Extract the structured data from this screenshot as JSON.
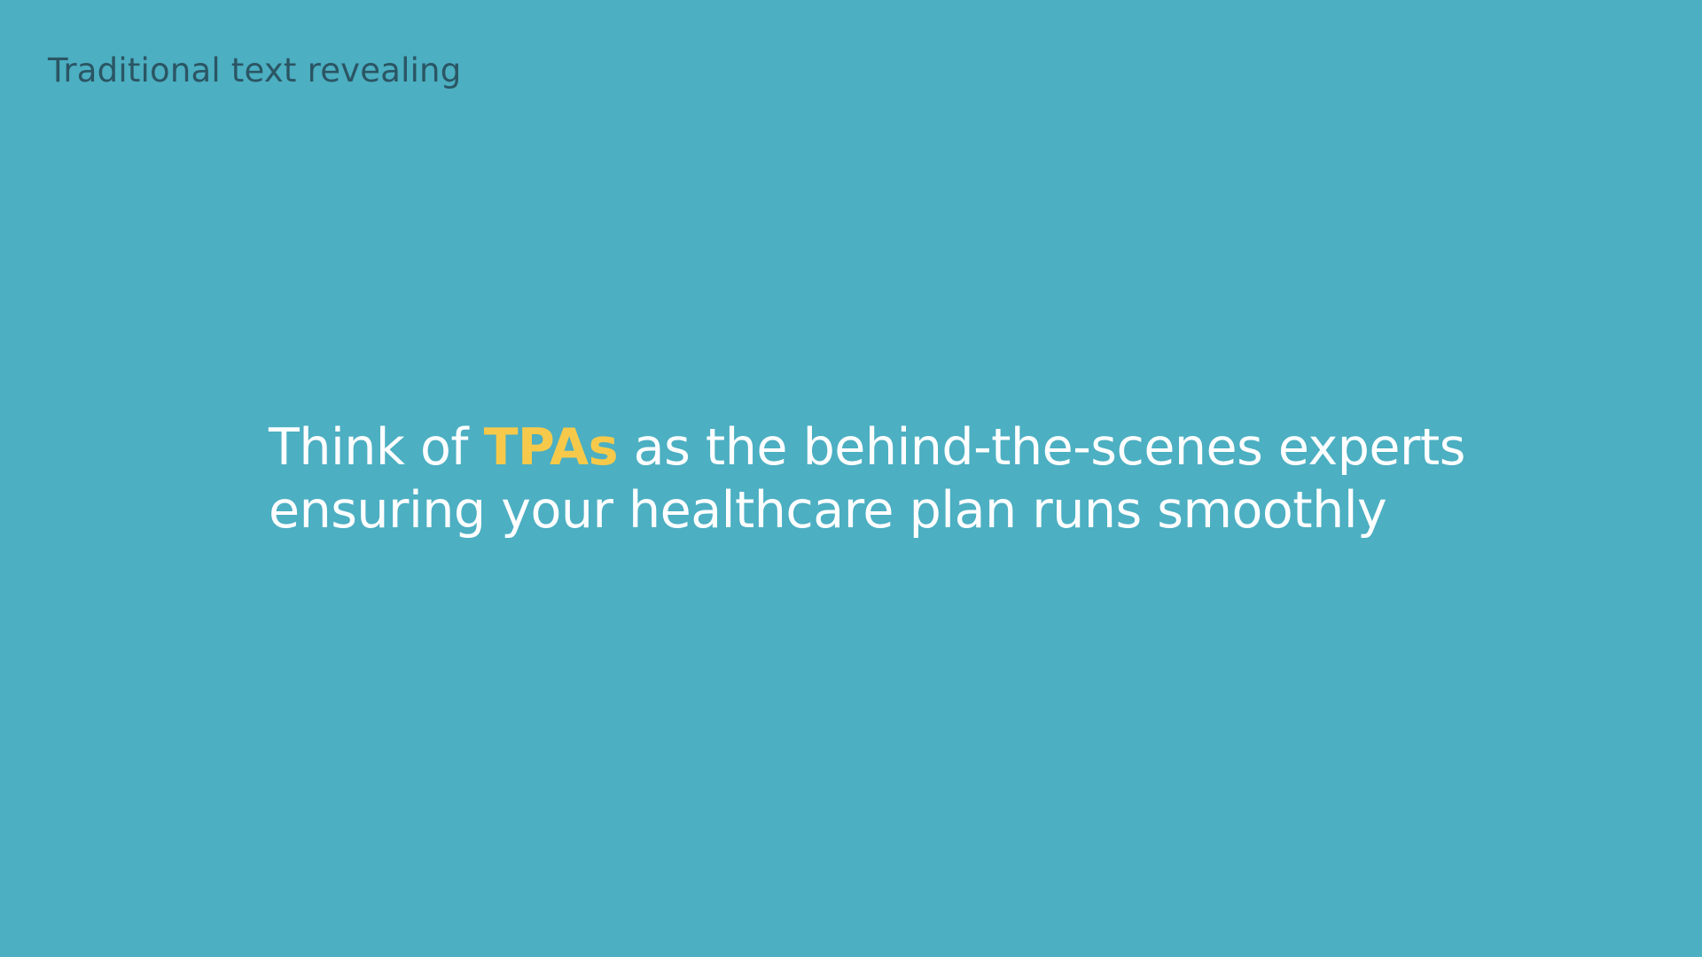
{
  "slide": {
    "caption": "Traditional text revealing",
    "headline": {
      "line1_prefix": "Think of ",
      "line1_highlight": "TPAs",
      "line1_suffix": " as the behind-the-scenes experts",
      "line2": "ensuring your healthcare plan runs smoothly"
    }
  },
  "colors": {
    "background": "#4cafc2",
    "caption_text": "#2b5563",
    "headline_text": "#ffffff",
    "highlight_text": "#f7c94a"
  }
}
